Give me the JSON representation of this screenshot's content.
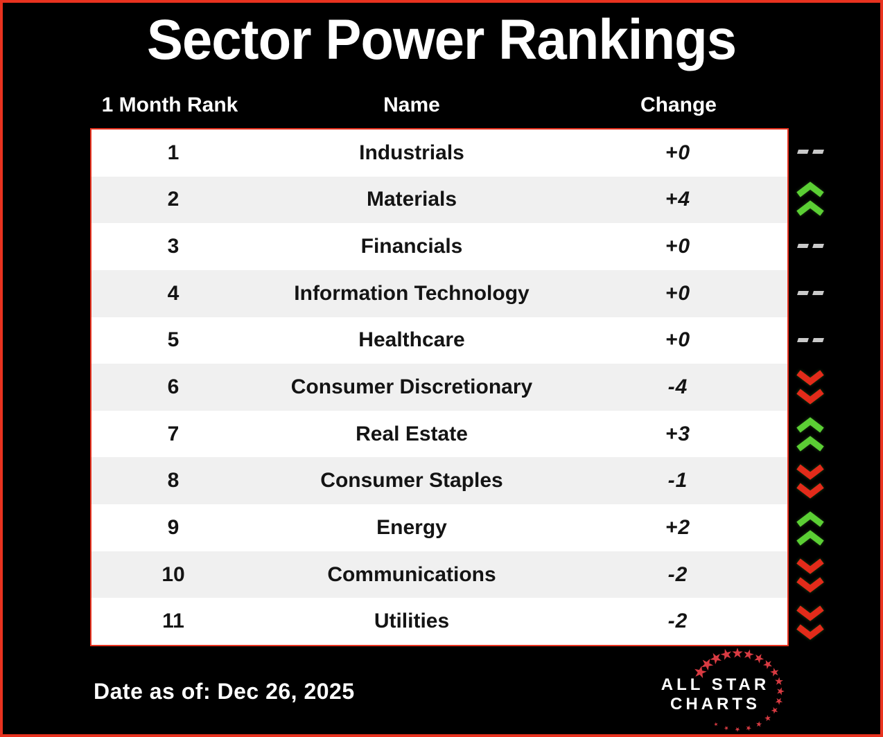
{
  "title": "Sector Power Rankings",
  "columns": {
    "rank": "1 Month Rank",
    "name": "Name",
    "change": "Change"
  },
  "rows": [
    {
      "rank": "1",
      "name": "Industrials",
      "change": "+0",
      "direction": "flat"
    },
    {
      "rank": "2",
      "name": "Materials",
      "change": "+4",
      "direction": "up"
    },
    {
      "rank": "3",
      "name": "Financials",
      "change": "+0",
      "direction": "flat"
    },
    {
      "rank": "4",
      "name": "Information Technology",
      "change": "+0",
      "direction": "flat"
    },
    {
      "rank": "5",
      "name": "Healthcare",
      "change": "+0",
      "direction": "flat"
    },
    {
      "rank": "6",
      "name": "Consumer Discretionary",
      "change": "-4",
      "direction": "down"
    },
    {
      "rank": "7",
      "name": "Real Estate",
      "change": "+3",
      "direction": "up"
    },
    {
      "rank": "8",
      "name": "Consumer Staples",
      "change": "-1",
      "direction": "down"
    },
    {
      "rank": "9",
      "name": "Energy",
      "change": "+2",
      "direction": "up"
    },
    {
      "rank": "10",
      "name": "Communications",
      "change": "-2",
      "direction": "down"
    },
    {
      "rank": "11",
      "name": "Utilities",
      "change": "-2",
      "direction": "down"
    }
  ],
  "footer": {
    "date_label": "Date as of: Dec 26, 2025"
  },
  "logo": {
    "line1": "ALL STAR",
    "line2": "CHARTS"
  },
  "colors": {
    "background": "#000000",
    "border": "#e8321f",
    "row_alt": "#f0f0f0",
    "up": "#5bcf34",
    "down": "#e22b1a",
    "flat": "#c9c9c9",
    "star": "#d93b42"
  },
  "chart_data": {
    "type": "table",
    "title": "Sector Power Rankings",
    "columns": [
      "1 Month Rank",
      "Name",
      "Change"
    ],
    "rows": [
      [
        1,
        "Industrials",
        "+0"
      ],
      [
        2,
        "Materials",
        "+4"
      ],
      [
        3,
        "Financials",
        "+0"
      ],
      [
        4,
        "Information Technology",
        "+0"
      ],
      [
        5,
        "Healthcare",
        "+0"
      ],
      [
        6,
        "Consumer Discretionary",
        "-4"
      ],
      [
        7,
        "Real Estate",
        "+3"
      ],
      [
        8,
        "Consumer Staples",
        "-1"
      ],
      [
        9,
        "Energy",
        "+2"
      ],
      [
        10,
        "Communications",
        "-2"
      ],
      [
        11,
        "Utilities",
        "-2"
      ]
    ],
    "date_as_of": "Dec 26, 2025"
  }
}
